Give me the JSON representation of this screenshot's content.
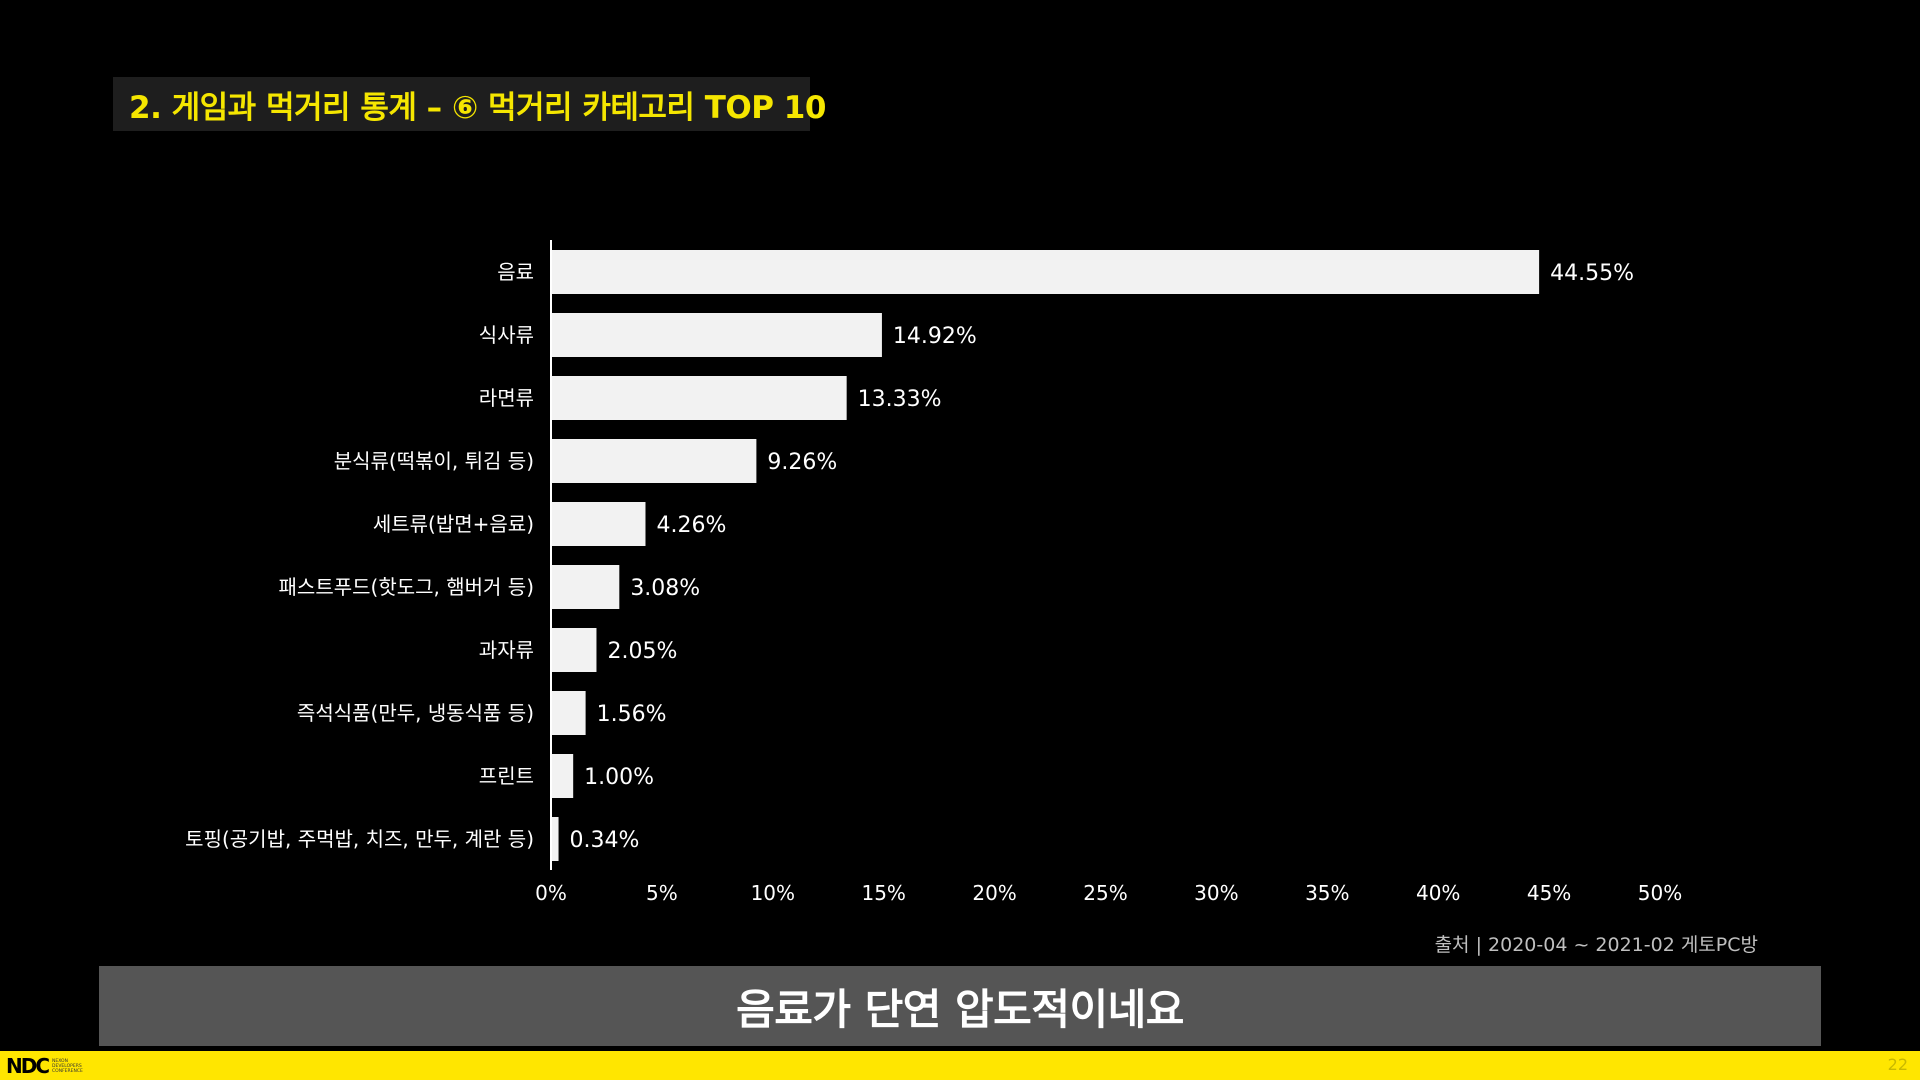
{
  "slide": {
    "title": "2. 게임과 먹거리 통계 – ⑥ 먹거리 카테고리 TOP 10",
    "source": "출처 | 2020-04 ~ 2021-02 게토PC방",
    "caption": "음료가 단연 압도적이네요",
    "page_number": "22",
    "logo": {
      "mark": "NDC",
      "sub": "NEXON DEVELOPERS CONFERENCE"
    }
  },
  "colors": {
    "background": "#000000",
    "bar": "#f2f2f2",
    "title": "#f5e600",
    "caption_bg": "#555555",
    "footer": "#ffe600"
  },
  "chart_data": {
    "type": "bar",
    "orientation": "horizontal",
    "categories": [
      "음료",
      "식사류",
      "라면류",
      "분식류(떡볶이, 튀김 등)",
      "세트류(밥면+음료)",
      "패스트푸드(핫도그, 햄버거 등)",
      "과자류",
      "즉석식품(만두, 냉동식품 등)",
      "프린트",
      "토핑(공기밥, 주먹밥, 치즈, 만두, 계란 등)"
    ],
    "values": [
      44.55,
      14.92,
      13.33,
      9.26,
      4.26,
      3.08,
      2.05,
      1.56,
      1.0,
      0.34
    ],
    "data_labels": [
      "44.55%",
      "14.92%",
      "13.33%",
      "9.26%",
      "4.26%",
      "3.08%",
      "2.05%",
      "1.56%",
      "1.00%",
      "0.34%"
    ],
    "xticks": [
      0,
      5,
      10,
      15,
      20,
      25,
      30,
      35,
      40,
      45,
      50
    ],
    "xtick_labels": [
      "0%",
      "5%",
      "10%",
      "15%",
      "20%",
      "25%",
      "30%",
      "35%",
      "40%",
      "45%",
      "50%"
    ],
    "xlim": [
      0,
      50
    ],
    "grid": false,
    "legend": "none"
  }
}
